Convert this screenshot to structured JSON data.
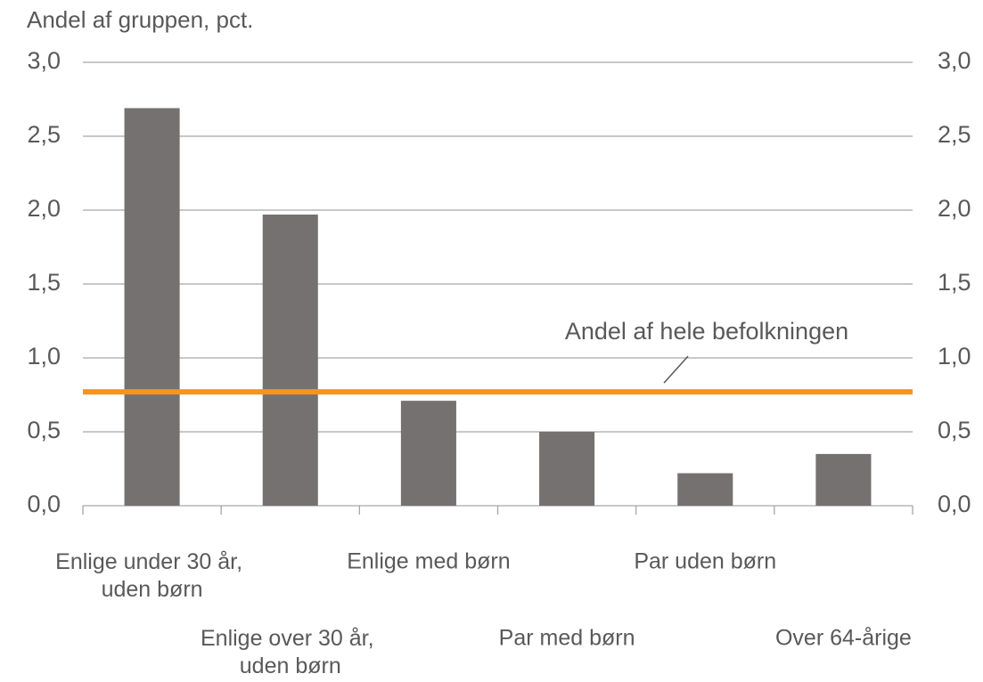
{
  "chart_data": {
    "type": "bar",
    "y_axis_label": "Andel af gruppen, pct.",
    "categories": [
      "Enlige under 30 år, uden børn",
      "Enlige over 30 år, uden børn",
      "Enlige med børn",
      "Par med børn",
      "Par uden børn",
      "Over 64-årige"
    ],
    "values": [
      2.69,
      1.97,
      0.71,
      0.5,
      0.22,
      0.35
    ],
    "color": "#767171",
    "ylim": [
      0,
      3
    ],
    "yticks": [
      {
        "value": 0,
        "label": "0,0"
      },
      {
        "value": 0.5,
        "label": "0,5"
      },
      {
        "value": 1,
        "label": "1,0"
      },
      {
        "value": 1.5,
        "label": "1,5"
      },
      {
        "value": 2,
        "label": "2,0"
      },
      {
        "value": 2.5,
        "label": "2,5"
      },
      {
        "value": 3,
        "label": "3,0"
      }
    ],
    "y2lim": [
      0,
      3
    ],
    "y2ticks": [
      {
        "value": 0,
        "label": "0,0"
      },
      {
        "value": 0.5,
        "label": "0,5"
      },
      {
        "value": 1,
        "label": "1,0"
      },
      {
        "value": 1.5,
        "label": "1,5"
      },
      {
        "value": 2,
        "label": "2,0"
      },
      {
        "value": 2.5,
        "label": "2,5"
      },
      {
        "value": 3,
        "label": "3,0"
      }
    ],
    "grid": true,
    "reference_line": {
      "value": 0.77,
      "label": "Andel af hele befolkningen",
      "color": "#f7941d"
    }
  }
}
